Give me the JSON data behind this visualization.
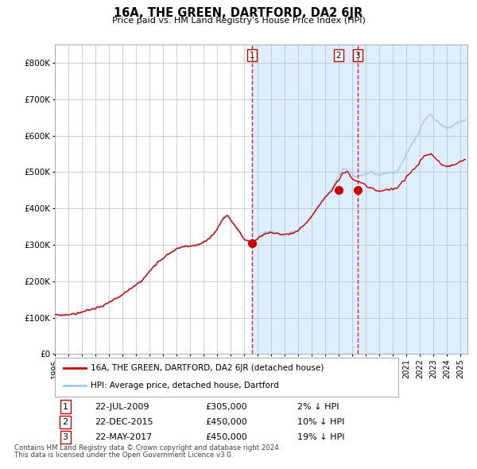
{
  "title": "16A, THE GREEN, DARTFORD, DA2 6JR",
  "subtitle": "Price paid vs. HM Land Registry's House Price Index (HPI)",
  "legend_line1": "16A, THE GREEN, DARTFORD, DA2 6JR (detached house)",
  "legend_line2": "HPI: Average price, detached house, Dartford",
  "footer1": "Contains HM Land Registry data © Crown copyright and database right 2024.",
  "footer2": "This data is licensed under the Open Government Licence v3.0.",
  "transactions": [
    {
      "num": 1,
      "date": "22-JUL-2009",
      "price": 305000,
      "pct": "2%",
      "dir": "↓"
    },
    {
      "num": 2,
      "date": "22-DEC-2015",
      "price": 450000,
      "pct": "10%",
      "dir": "↓"
    },
    {
      "num": 3,
      "date": "22-MAY-2017",
      "price": 450000,
      "pct": "19%",
      "dir": "↓"
    }
  ],
  "transaction_dates_num": [
    2009.554,
    2015.972,
    2017.388
  ],
  "transaction_prices": [
    305000,
    450000,
    450000
  ],
  "vline1_date": 2009.554,
  "vline2_date": 2017.388,
  "hpi_color": "#a8c8e8",
  "price_color": "#cc0000",
  "bg_fill_color": "#ddeeff",
  "grid_color": "#bbbbbb",
  "ylim": [
    0,
    850000
  ],
  "xlim_start": 1995.0,
  "xlim_end": 2025.5,
  "yticks": [
    0,
    100000,
    200000,
    300000,
    400000,
    500000,
    600000,
    700000,
    800000
  ],
  "ytick_labels": [
    "£0",
    "£100K",
    "£200K",
    "£300K",
    "£400K",
    "£500K",
    "£600K",
    "£700K",
    "£800K"
  ],
  "xtick_years": [
    1995,
    1996,
    1997,
    1998,
    1999,
    2000,
    2001,
    2002,
    2003,
    2004,
    2005,
    2006,
    2007,
    2008,
    2009,
    2010,
    2011,
    2012,
    2013,
    2014,
    2015,
    2016,
    2017,
    2018,
    2019,
    2020,
    2021,
    2022,
    2023,
    2024,
    2025
  ],
  "hpi_anchors": [
    [
      1995.0,
      107000
    ],
    [
      1995.5,
      107500
    ],
    [
      1996.0,
      109000
    ],
    [
      1996.5,
      110000
    ],
    [
      1997.0,
      116000
    ],
    [
      1997.5,
      121000
    ],
    [
      1998.0,
      127000
    ],
    [
      1998.5,
      133000
    ],
    [
      1999.0,
      142000
    ],
    [
      1999.5,
      152000
    ],
    [
      2000.0,
      163000
    ],
    [
      2000.5,
      178000
    ],
    [
      2001.0,
      192000
    ],
    [
      2001.5,
      205000
    ],
    [
      2002.0,
      228000
    ],
    [
      2002.5,
      250000
    ],
    [
      2003.0,
      265000
    ],
    [
      2003.5,
      278000
    ],
    [
      2004.0,
      289000
    ],
    [
      2004.5,
      296000
    ],
    [
      2005.0,
      298000
    ],
    [
      2005.5,
      300000
    ],
    [
      2006.0,
      308000
    ],
    [
      2006.5,
      318000
    ],
    [
      2007.0,
      345000
    ],
    [
      2007.5,
      378000
    ],
    [
      2007.8,
      382000
    ],
    [
      2008.0,
      370000
    ],
    [
      2008.5,
      345000
    ],
    [
      2009.0,
      316000
    ],
    [
      2009.5,
      308000
    ],
    [
      2009.8,
      312000
    ],
    [
      2010.0,
      320000
    ],
    [
      2010.5,
      332000
    ],
    [
      2011.0,
      335000
    ],
    [
      2011.5,
      332000
    ],
    [
      2012.0,
      330000
    ],
    [
      2012.5,
      333000
    ],
    [
      2013.0,
      342000
    ],
    [
      2013.5,
      358000
    ],
    [
      2014.0,
      382000
    ],
    [
      2014.5,
      408000
    ],
    [
      2015.0,
      432000
    ],
    [
      2015.5,
      455000
    ],
    [
      2016.0,
      490000
    ],
    [
      2016.3,
      510000
    ],
    [
      2016.6,
      508000
    ],
    [
      2016.9,
      498000
    ],
    [
      2017.0,
      492000
    ],
    [
      2017.3,
      488000
    ],
    [
      2017.5,
      490000
    ],
    [
      2017.8,
      492000
    ],
    [
      2018.0,
      495000
    ],
    [
      2018.3,
      500000
    ],
    [
      2018.6,
      498000
    ],
    [
      2018.9,
      492000
    ],
    [
      2019.0,
      492000
    ],
    [
      2019.3,
      495000
    ],
    [
      2019.6,
      498000
    ],
    [
      2019.9,
      500000
    ],
    [
      2020.0,
      495000
    ],
    [
      2020.3,
      500000
    ],
    [
      2020.6,
      520000
    ],
    [
      2020.9,
      540000
    ],
    [
      2021.0,
      550000
    ],
    [
      2021.3,
      572000
    ],
    [
      2021.6,
      590000
    ],
    [
      2021.9,
      608000
    ],
    [
      2022.0,
      618000
    ],
    [
      2022.3,
      640000
    ],
    [
      2022.6,
      655000
    ],
    [
      2022.8,
      658000
    ],
    [
      2023.0,
      648000
    ],
    [
      2023.3,
      638000
    ],
    [
      2023.6,
      628000
    ],
    [
      2023.9,
      622000
    ],
    [
      2024.0,
      620000
    ],
    [
      2024.3,
      625000
    ],
    [
      2024.6,
      632000
    ],
    [
      2024.9,
      638000
    ],
    [
      2025.0,
      640000
    ],
    [
      2025.3,
      643000
    ]
  ],
  "price_anchors": [
    [
      1995.0,
      107000
    ],
    [
      1995.5,
      107000
    ],
    [
      1996.0,
      109000
    ],
    [
      1996.5,
      110000
    ],
    [
      1997.0,
      116000
    ],
    [
      1997.5,
      120000
    ],
    [
      1998.0,
      126000
    ],
    [
      1998.5,
      132000
    ],
    [
      1999.0,
      141000
    ],
    [
      1999.5,
      151000
    ],
    [
      2000.0,
      162000
    ],
    [
      2000.5,
      177000
    ],
    [
      2001.0,
      191000
    ],
    [
      2001.5,
      204000
    ],
    [
      2002.0,
      227000
    ],
    [
      2002.5,
      249000
    ],
    [
      2003.0,
      264000
    ],
    [
      2003.5,
      277000
    ],
    [
      2004.0,
      288000
    ],
    [
      2004.5,
      295000
    ],
    [
      2005.0,
      297000
    ],
    [
      2005.5,
      299000
    ],
    [
      2006.0,
      307000
    ],
    [
      2006.5,
      317000
    ],
    [
      2007.0,
      344000
    ],
    [
      2007.5,
      376000
    ],
    [
      2007.8,
      380000
    ],
    [
      2008.0,
      368000
    ],
    [
      2008.5,
      343000
    ],
    [
      2009.0,
      314000
    ],
    [
      2009.5,
      306000
    ],
    [
      2009.8,
      310000
    ],
    [
      2010.0,
      318000
    ],
    [
      2010.5,
      330000
    ],
    [
      2011.0,
      333000
    ],
    [
      2011.5,
      330000
    ],
    [
      2012.0,
      328000
    ],
    [
      2012.5,
      331000
    ],
    [
      2013.0,
      340000
    ],
    [
      2013.5,
      356000
    ],
    [
      2014.0,
      380000
    ],
    [
      2014.5,
      406000
    ],
    [
      2015.0,
      430000
    ],
    [
      2015.5,
      452000
    ],
    [
      2016.0,
      478000
    ],
    [
      2016.3,
      498000
    ],
    [
      2016.6,
      500000
    ],
    [
      2016.9,
      488000
    ],
    [
      2017.0,
      480000
    ],
    [
      2017.3,
      476000
    ],
    [
      2017.5,
      472000
    ],
    [
      2017.8,
      468000
    ],
    [
      2018.0,
      462000
    ],
    [
      2018.3,
      458000
    ],
    [
      2018.6,
      452000
    ],
    [
      2018.9,
      448000
    ],
    [
      2019.0,
      448000
    ],
    [
      2019.3,
      450000
    ],
    [
      2019.6,
      452000
    ],
    [
      2019.9,
      455000
    ],
    [
      2020.0,
      450000
    ],
    [
      2020.3,
      455000
    ],
    [
      2020.6,
      468000
    ],
    [
      2020.9,
      480000
    ],
    [
      2021.0,
      488000
    ],
    [
      2021.3,
      498000
    ],
    [
      2021.6,
      510000
    ],
    [
      2021.9,
      522000
    ],
    [
      2022.0,
      530000
    ],
    [
      2022.3,
      542000
    ],
    [
      2022.6,
      548000
    ],
    [
      2022.8,
      550000
    ],
    [
      2023.0,
      542000
    ],
    [
      2023.3,
      532000
    ],
    [
      2023.6,
      522000
    ],
    [
      2023.9,
      515000
    ],
    [
      2024.0,
      515000
    ],
    [
      2024.3,
      518000
    ],
    [
      2024.6,
      522000
    ],
    [
      2024.9,
      528000
    ],
    [
      2025.0,
      530000
    ],
    [
      2025.3,
      532000
    ]
  ]
}
